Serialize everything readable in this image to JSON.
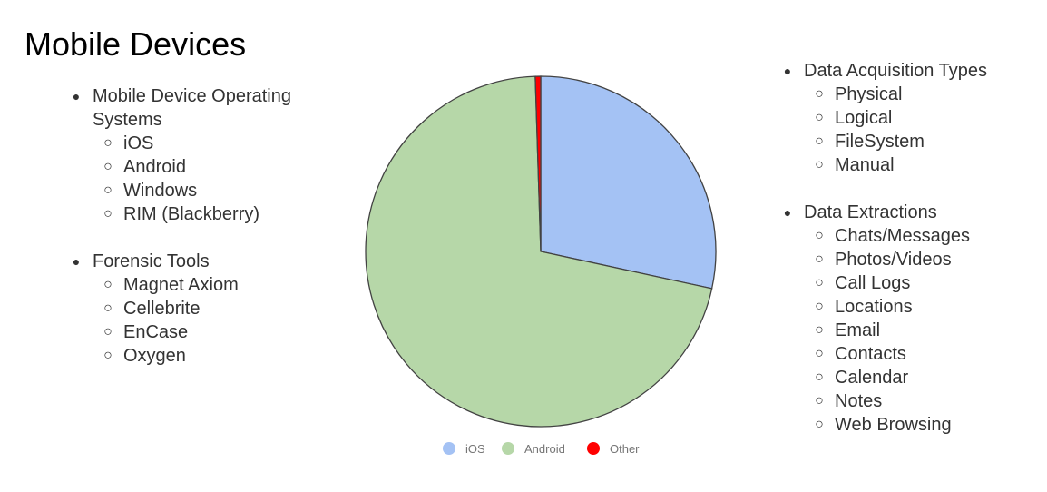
{
  "title": "Mobile Devices",
  "left_list": [
    {
      "label": "Mobile Device Operating Systems",
      "items": [
        "iOS",
        "Android",
        "Windows",
        "RIM (Blackberry)"
      ]
    },
    {
      "label": "Forensic Tools",
      "items": [
        "Magnet Axiom",
        "Cellebrite",
        "EnCase",
        "Oxygen"
      ]
    }
  ],
  "right_list": [
    {
      "label": "Data Acquisition Types",
      "items": [
        "Physical",
        "Logical",
        "FileSystem",
        "Manual"
      ]
    },
    {
      "label": "Data Extractions",
      "items": [
        "Chats/Messages",
        "Photos/Videos",
        "Call Logs",
        "Locations",
        "Email",
        "Contacts",
        "Calendar",
        "Notes",
        "Web Browsing"
      ]
    }
  ],
  "chart_data": {
    "type": "pie",
    "categories": [
      "iOS",
      "Android",
      "Other"
    ],
    "values": [
      28.4,
      71.1,
      0.5
    ],
    "colors": [
      "#a4c2f4",
      "#b6d7a8",
      "#ff0000"
    ],
    "legend": "bottom",
    "start_angle": "top, clockwise"
  }
}
